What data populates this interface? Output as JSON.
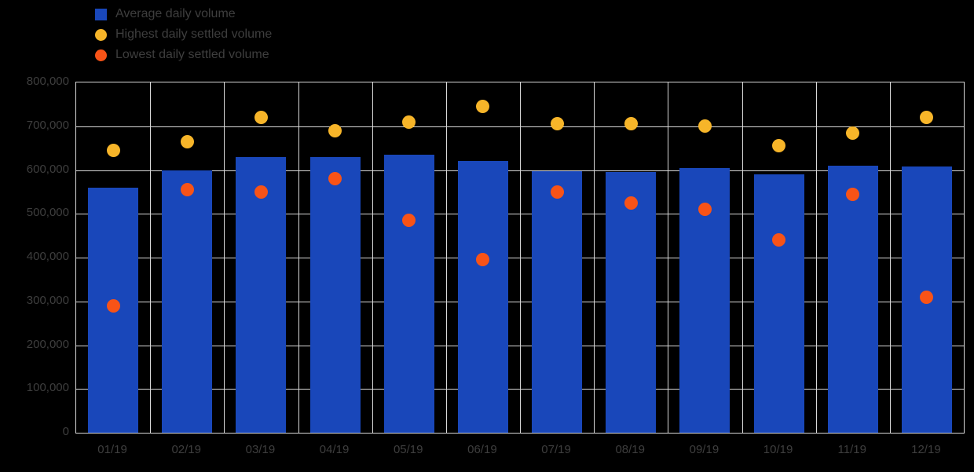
{
  "legend": {
    "items": [
      {
        "label": "Average daily volume",
        "marker": "square",
        "color": "#1947ba"
      },
      {
        "label": "Highest daily settled volume",
        "marker": "circle",
        "color": "#f7b529"
      },
      {
        "label": "Lowest daily settled volume",
        "marker": "circle",
        "color": "#f85317"
      }
    ]
  },
  "chart_data": {
    "type": "bar",
    "title": "",
    "xlabel": "",
    "ylabel": "",
    "categories": [
      "01/19",
      "02/19",
      "03/19",
      "04/19",
      "05/19",
      "06/19",
      "07/19",
      "08/19",
      "09/19",
      "10/19",
      "11/19",
      "12/19"
    ],
    "series": [
      {
        "name": "Average daily volume",
        "type": "bar",
        "color": "#1947ba",
        "values": [
          560000,
          600000,
          630000,
          630000,
          635000,
          620000,
          598000,
          595000,
          605000,
          590000,
          610000,
          608000
        ]
      },
      {
        "name": "Highest daily settled volume",
        "type": "point",
        "color": "#f7b529",
        "values": [
          645000,
          665000,
          720000,
          690000,
          710000,
          745000,
          705000,
          705000,
          700000,
          655000,
          685000,
          720000
        ]
      },
      {
        "name": "Lowest daily settled volume",
        "type": "point",
        "color": "#f85317",
        "values": [
          290000,
          555000,
          550000,
          580000,
          485000,
          395000,
          550000,
          525000,
          510000,
          440000,
          545000,
          310000
        ]
      }
    ],
    "ylim": [
      0,
      800000
    ],
    "yticks": [
      0,
      100000,
      200000,
      300000,
      400000,
      500000,
      600000,
      700000,
      800000
    ],
    "ytick_labels": [
      "0",
      "100,000",
      "200,000",
      "300,000",
      "400,000",
      "500,000",
      "600,000",
      "700,000",
      "800,000"
    ],
    "grid": true,
    "legend_position": "top-left",
    "background_color": "#000000",
    "grid_color": "#d8d8d8",
    "axis_text_color": "#3e3e3e"
  }
}
